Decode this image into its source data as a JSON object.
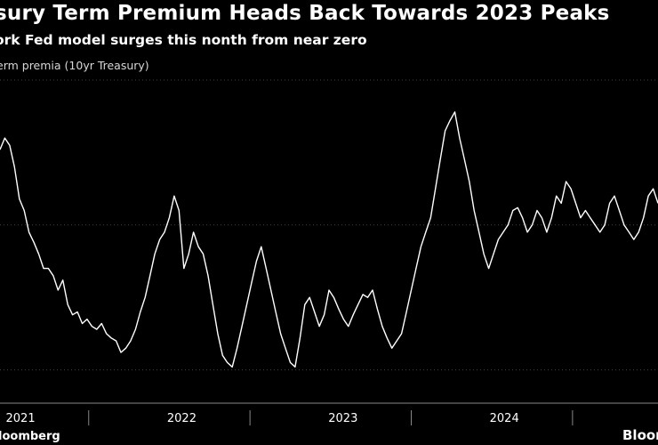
{
  "header": {
    "title": "sury Term Premium Heads Back Towards 2023 Peaks",
    "subtitle": "ork Fed model surges this nonth from near zero",
    "series_label": "erm premia (10yr Treasury)"
  },
  "footer": {
    "source": "loomberg",
    "logo": "Bloom"
  },
  "colors": {
    "background": "#000000",
    "line": "#ffffff",
    "gridline": "#444444",
    "text": "#ffffff"
  },
  "chart_data": {
    "type": "line",
    "title": "sury Term Premium Heads Back Towards 2023 Peaks",
    "subtitle": "ork Fed model surges this nonth from near zero",
    "series": [
      {
        "name": "erm premia (10yr Treasury)",
        "x": [
          2020.95,
          2020.98,
          2021.01,
          2021.04,
          2021.07,
          2021.1,
          2021.13,
          2021.16,
          2021.19,
          2021.22,
          2021.25,
          2021.28,
          2021.31,
          2021.34,
          2021.37,
          2021.4,
          2021.43,
          2021.46,
          2021.49,
          2021.52,
          2021.55,
          2021.58,
          2021.61,
          2021.64,
          2021.67,
          2021.7,
          2021.73,
          2021.76,
          2021.79,
          2021.82,
          2021.85,
          2021.88,
          2021.91,
          2021.94,
          2021.97,
          2022.0,
          2022.03,
          2022.06,
          2022.09,
          2022.12,
          2022.15,
          2022.18,
          2022.21,
          2022.24,
          2022.27,
          2022.3,
          2022.33,
          2022.36,
          2022.39,
          2022.42,
          2022.45,
          2022.48,
          2022.51,
          2022.54,
          2022.57,
          2022.6,
          2022.63,
          2022.66,
          2022.69,
          2022.72,
          2022.75,
          2022.78,
          2022.81,
          2022.84,
          2022.87,
          2022.9,
          2022.93,
          2022.96,
          2022.99,
          2023.02,
          2023.05,
          2023.08,
          2023.11,
          2023.14,
          2023.17,
          2023.2,
          2023.23,
          2023.26,
          2023.29,
          2023.32,
          2023.35,
          2023.38,
          2023.41,
          2023.44,
          2023.47,
          2023.5,
          2023.53,
          2023.56,
          2023.59,
          2023.62,
          2023.65,
          2023.68,
          2023.71,
          2023.74,
          2023.77,
          2023.8,
          2023.83,
          2023.86,
          2023.89,
          2023.92,
          2023.95,
          2023.98,
          2024.01,
          2024.04,
          2024.07,
          2024.1,
          2024.13,
          2024.16,
          2024.19,
          2024.22,
          2024.25,
          2024.28,
          2024.31,
          2024.34,
          2024.37,
          2024.4,
          2024.43,
          2024.46,
          2024.49,
          2024.52,
          2024.55,
          2024.58,
          2024.61,
          2024.64,
          2024.67,
          2024.7,
          2024.73,
          2024.76,
          2024.79,
          2024.82,
          2024.85,
          2024.88,
          2024.91,
          2024.94,
          2024.97,
          2025.0,
          2025.03
        ],
        "y": [
          0.52,
          0.6,
          0.55,
          0.4,
          0.18,
          0.1,
          -0.05,
          -0.12,
          -0.2,
          -0.3,
          -0.3,
          -0.35,
          -0.45,
          -0.38,
          -0.55,
          -0.62,
          -0.6,
          -0.68,
          -0.65,
          -0.7,
          -0.72,
          -0.68,
          -0.75,
          -0.78,
          -0.8,
          -0.88,
          -0.85,
          -0.8,
          -0.72,
          -0.6,
          -0.5,
          -0.35,
          -0.2,
          -0.1,
          -0.05,
          0.05,
          0.2,
          0.1,
          -0.3,
          -0.2,
          -0.05,
          -0.15,
          -0.2,
          -0.35,
          -0.55,
          -0.75,
          -0.9,
          -0.95,
          -0.98,
          -0.85,
          -0.7,
          -0.55,
          -0.4,
          -0.25,
          -0.15,
          -0.3,
          -0.45,
          -0.6,
          -0.75,
          -0.85,
          -0.95,
          -0.98,
          -0.78,
          -0.55,
          -0.5,
          -0.6,
          -0.7,
          -0.62,
          -0.45,
          -0.5,
          -0.58,
          -0.65,
          -0.7,
          -0.62,
          -0.55,
          -0.48,
          -0.5,
          -0.45,
          -0.58,
          -0.7,
          -0.78,
          -0.85,
          -0.8,
          -0.75,
          -0.6,
          -0.45,
          -0.3,
          -0.15,
          -0.05,
          0.05,
          0.25,
          0.45,
          0.65,
          0.72,
          0.78,
          0.6,
          0.45,
          0.3,
          0.1,
          -0.05,
          -0.2,
          -0.3,
          -0.2,
          -0.1,
          -0.05,
          0.0,
          0.1,
          0.12,
          0.05,
          -0.05,
          0.0,
          0.1,
          0.05,
          -0.05,
          0.05,
          0.2,
          0.15,
          0.3,
          0.25,
          0.15,
          0.05,
          0.1,
          0.05,
          0.0,
          -0.05,
          0.0,
          0.15,
          0.2,
          0.1,
          0.0,
          -0.05,
          -0.1,
          -0.05,
          0.05,
          0.2,
          0.25,
          0.15
        ],
        "color": "#ffffff"
      }
    ],
    "xlabel": "",
    "ylabel": "",
    "xlim": [
      2020.95,
      2025.03
    ],
    "ylim": [
      -1.15,
      1.0
    ],
    "gridlines_y": [
      -1.0,
      0.0,
      1.0
    ],
    "x_ticks": [
      {
        "value": 2021.0,
        "label": "2021"
      },
      {
        "value": 2022.0,
        "label": "2022"
      },
      {
        "value": 2023.0,
        "label": "2023"
      },
      {
        "value": 2024.0,
        "label": "2024"
      }
    ],
    "x_dividers": [
      2021.5,
      2022.5,
      2023.5,
      2024.5
    ],
    "grid": true,
    "legend": "none"
  }
}
